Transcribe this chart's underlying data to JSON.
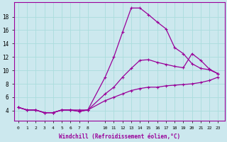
{
  "xlabel": "Windchill (Refroidissement éolien,°C)",
  "bg_color": "#cce8ee",
  "line_color": "#990099",
  "grid_color": "#aadddd",
  "x_ticks": [
    0,
    1,
    2,
    3,
    4,
    5,
    6,
    7,
    8,
    10,
    11,
    12,
    13,
    14,
    15,
    16,
    17,
    18,
    19,
    20,
    21,
    22,
    23
  ],
  "xlim": [
    -0.5,
    23.8
  ],
  "ylim": [
    2.5,
    20.2
  ],
  "yticks": [
    4,
    6,
    8,
    10,
    12,
    14,
    16,
    18
  ],
  "lines": [
    {
      "x": [
        0,
        1,
        2,
        3,
        4,
        5,
        6,
        7,
        8,
        10,
        11,
        12,
        13,
        14,
        15,
        16,
        17,
        18,
        19,
        20,
        21,
        22,
        23
      ],
      "y": [
        4.5,
        4.1,
        4.1,
        3.7,
        3.7,
        4.1,
        4.1,
        4.1,
        4.1,
        9.0,
        12.0,
        15.7,
        19.3,
        19.3,
        18.3,
        17.2,
        16.2,
        13.4,
        12.5,
        11.0,
        10.3,
        10.1,
        9.5
      ]
    },
    {
      "x": [
        0,
        1,
        2,
        3,
        4,
        5,
        6,
        7,
        8,
        10,
        11,
        12,
        13,
        14,
        15,
        16,
        17,
        18,
        19,
        20,
        21,
        22,
        23
      ],
      "y": [
        4.5,
        4.1,
        4.1,
        3.7,
        3.7,
        4.1,
        4.1,
        3.9,
        4.1,
        6.5,
        7.5,
        9.0,
        10.3,
        11.5,
        11.6,
        11.2,
        10.9,
        10.6,
        10.4,
        12.5,
        11.5,
        10.2,
        9.5
      ]
    },
    {
      "x": [
        0,
        1,
        2,
        3,
        4,
        5,
        6,
        7,
        8,
        10,
        11,
        12,
        13,
        14,
        15,
        16,
        17,
        18,
        19,
        20,
        21,
        22,
        23
      ],
      "y": [
        4.5,
        4.1,
        4.1,
        3.7,
        3.7,
        4.1,
        4.1,
        3.9,
        4.1,
        5.5,
        6.0,
        6.5,
        7.0,
        7.3,
        7.5,
        7.5,
        7.7,
        7.8,
        7.9,
        8.0,
        8.2,
        8.5,
        9.0
      ]
    }
  ]
}
